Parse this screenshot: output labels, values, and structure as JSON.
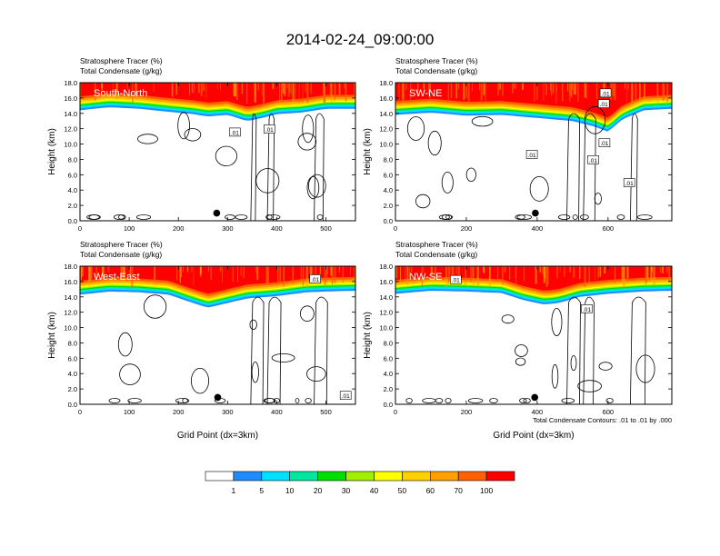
{
  "title": "2014-02-24_09:00:00",
  "colors": {
    "levels": [
      "#ffffff",
      "#1e8cff",
      "#00e0ff",
      "#00e8a0",
      "#00e000",
      "#a0f000",
      "#ffff00",
      "#ffd000",
      "#ffa000",
      "#ff6000",
      "#ff0000"
    ],
    "contour": "#000000",
    "marker": "#000000"
  },
  "colorbar": {
    "labels": [
      "1",
      "5",
      "10",
      "20",
      "30",
      "40",
      "50",
      "60",
      "70",
      "100"
    ]
  },
  "footnote": "Total Condensate Contours: .01 to .01 by .000",
  "chart_data": [
    {
      "type": "heatmap",
      "panel_label": "South-North",
      "title_lines": [
        "Stratosphere Tracer   (%)",
        "Total Condensate   (g/kg)"
      ],
      "ylabel": "Height (km)",
      "xlabel": "",
      "xlim": [
        0,
        560
      ],
      "ylim": [
        0,
        18
      ],
      "x_ticks": [
        "0",
        "100",
        "200",
        "300",
        "400",
        "500"
      ],
      "y_ticks": [
        "0.0",
        "2.0",
        "4.0",
        "6.0",
        "8.0",
        "10.0",
        "12.0",
        "14.0",
        "16.0",
        "18.0"
      ],
      "contour_labels": [
        {
          "text": ".01",
          "x": 315,
          "y": 11.5
        },
        {
          "text": ".01",
          "x": 385,
          "y": 11.9
        }
      ],
      "marker": {
        "x": 278,
        "y": 1.0
      },
      "tracer_bottom_km": [
        [
          0,
          14.4
        ],
        [
          60,
          14.8
        ],
        [
          120,
          14.6
        ],
        [
          180,
          14.2
        ],
        [
          230,
          13.9
        ],
        [
          260,
          13.6
        ],
        [
          300,
          13.8
        ],
        [
          340,
          13.0
        ],
        [
          370,
          13.4
        ],
        [
          400,
          13.9
        ],
        [
          450,
          14.1
        ],
        [
          500,
          14.6
        ],
        [
          560,
          14.6
        ]
      ]
    },
    {
      "type": "heatmap",
      "panel_label": "SW-NE",
      "title_lines": [
        "Stratosphere Tracer   (%)",
        "Total Condensate   (g/kg)"
      ],
      "ylabel": "Height (km)",
      "xlabel": "",
      "xlim": [
        0,
        780
      ],
      "ylim": [
        0,
        18
      ],
      "x_ticks": [
        "0",
        "200",
        "400",
        "600"
      ],
      "y_ticks": [
        "0.0",
        "2.0",
        "4.0",
        "6.0",
        "8.0",
        "10.0",
        "12.0",
        "14.0",
        "16.0",
        "18.0"
      ],
      "contour_labels": [
        {
          "text": ".01",
          "x": 588,
          "y": 15.2
        },
        {
          "text": ".01",
          "x": 593,
          "y": 16.6
        },
        {
          "text": ".01",
          "x": 385,
          "y": 8.6
        },
        {
          "text": ".01",
          "x": 590,
          "y": 10.1
        },
        {
          "text": ".01",
          "x": 558,
          "y": 7.9
        },
        {
          "text": ".01",
          "x": 660,
          "y": 4.9
        }
      ],
      "marker": {
        "x": 395,
        "y": 1.0
      },
      "tracer_bottom_km": [
        [
          0,
          13.8
        ],
        [
          100,
          14.1
        ],
        [
          200,
          13.7
        ],
        [
          300,
          13.8
        ],
        [
          400,
          13.4
        ],
        [
          450,
          13.2
        ],
        [
          500,
          13.0
        ],
        [
          560,
          12.3
        ],
        [
          600,
          11.6
        ],
        [
          640,
          13.2
        ],
        [
          700,
          14.4
        ],
        [
          780,
          14.6
        ]
      ]
    },
    {
      "type": "heatmap",
      "panel_label": "West-East",
      "title_lines": [
        "Stratosphere Tracer   (%)",
        "Total Condensate   (g/kg)"
      ],
      "ylabel": "Height (km)",
      "xlabel": "Grid Point (dx=3km)",
      "xlim": [
        0,
        560
      ],
      "ylim": [
        0,
        18
      ],
      "x_ticks": [
        "0",
        "100",
        "200",
        "300",
        "400",
        "500"
      ],
      "y_ticks": [
        "0.0",
        "2.0",
        "4.0",
        "6.0",
        "8.0",
        "10.0",
        "12.0",
        "14.0",
        "16.0",
        "18.0"
      ],
      "contour_labels": [
        {
          "text": ".01",
          "x": 478,
          "y": 16.3
        },
        {
          "text": ".01",
          "x": 540,
          "y": 1.1
        }
      ],
      "marker": {
        "x": 280,
        "y": 0.9
      },
      "tracer_bottom_km": [
        [
          0,
          14.3
        ],
        [
          60,
          14.7
        ],
        [
          120,
          14.6
        ],
        [
          180,
          14.3
        ],
        [
          230,
          13.2
        ],
        [
          260,
          12.6
        ],
        [
          300,
          13.2
        ],
        [
          340,
          13.8
        ],
        [
          400,
          14.1
        ],
        [
          460,
          14.6
        ],
        [
          500,
          14.7
        ],
        [
          560,
          14.8
        ]
      ]
    },
    {
      "type": "heatmap",
      "panel_label": "NW-SE",
      "title_lines": [
        "Stratosphere Tracer   (%)",
        "Total Condensate   (g/kg)"
      ],
      "ylabel": "Height (km)",
      "xlabel": "Grid Point (dx=3km)",
      "xlim": [
        0,
        780
      ],
      "ylim": [
        0,
        18
      ],
      "x_ticks": [
        "0",
        "200",
        "400",
        "600"
      ],
      "y_ticks": [
        "0.0",
        "2.0",
        "4.0",
        "6.0",
        "8.0",
        "10.0",
        "12.0",
        "14.0",
        "16.0",
        "18.0"
      ],
      "contour_labels": [
        {
          "text": ".01",
          "x": 170,
          "y": 16.2
        },
        {
          "text": ".01",
          "x": 540,
          "y": 12.4
        }
      ],
      "marker": {
        "x": 393,
        "y": 0.9
      },
      "tracer_bottom_km": [
        [
          0,
          14.4
        ],
        [
          100,
          14.8
        ],
        [
          200,
          14.7
        ],
        [
          300,
          14.5
        ],
        [
          360,
          13.6
        ],
        [
          420,
          13.0
        ],
        [
          460,
          13.2
        ],
        [
          520,
          14.0
        ],
        [
          600,
          14.4
        ],
        [
          700,
          14.7
        ],
        [
          780,
          14.8
        ]
      ]
    }
  ]
}
